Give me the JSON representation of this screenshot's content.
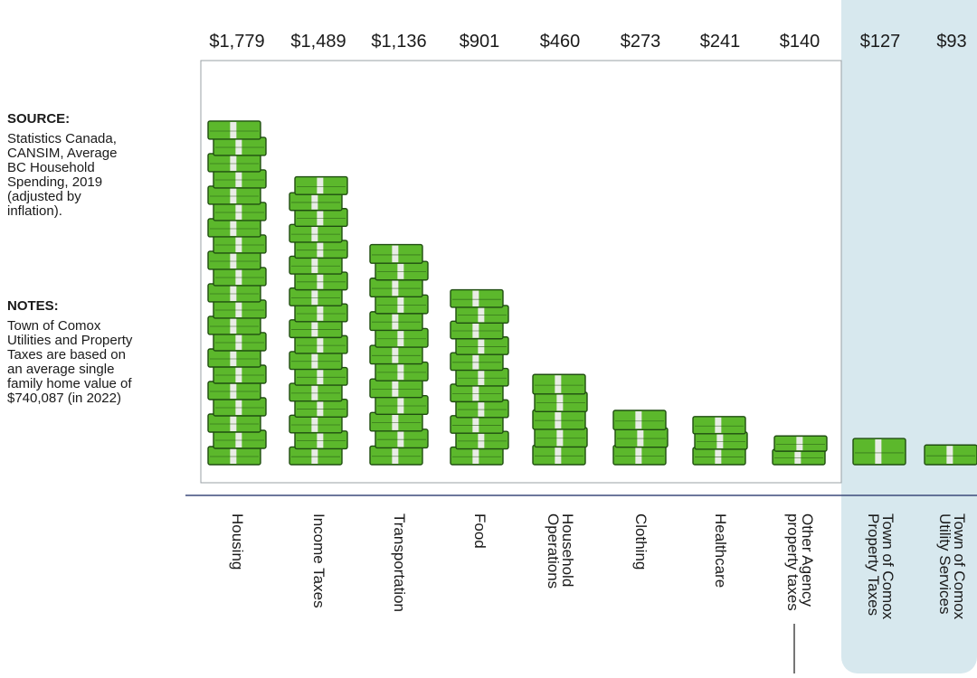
{
  "sidebar": {
    "source_heading": "SOURCE:",
    "source_text": "Statistics Canada,\nCANSIM, Average\nBC Household\nSpending, 2019\n(adjusted by\n inflation).",
    "notes_heading": "NOTES:",
    "notes_text": "Town of Comox\nUtilities and Property\nTaxes are based on\nan average single\nfamily home value of\n$740,087 (in 2022)"
  },
  "colors": {
    "money_green": "#5cb82c",
    "money_dark": "#1f4d10",
    "band": "#e9ece6",
    "highlight": "#d7e8ee",
    "axis": "#3b4a7a"
  },
  "chart_data": {
    "type": "bar",
    "categories": [
      [
        "Housing"
      ],
      [
        "Income Taxes"
      ],
      [
        "Transportation"
      ],
      [
        "Food"
      ],
      [
        "Household",
        "Operations"
      ],
      [
        "Clothing"
      ],
      [
        "Healthcare"
      ],
      [
        "Other Agency",
        "property taxes"
      ],
      [
        "Town of Comox",
        "Property Taxes"
      ],
      [
        "Town of Comox",
        "Utility Services"
      ]
    ],
    "values": [
      1779,
      1489,
      1136,
      901,
      460,
      273,
      241,
      140,
      127,
      93
    ],
    "value_labels": [
      "$1,779",
      "$1,489",
      "$1,136",
      "$901",
      "$460",
      "$273",
      "$241",
      "$140",
      "$127",
      "$93"
    ],
    "highlighted": [
      false,
      false,
      false,
      false,
      false,
      false,
      false,
      false,
      true,
      true
    ]
  }
}
